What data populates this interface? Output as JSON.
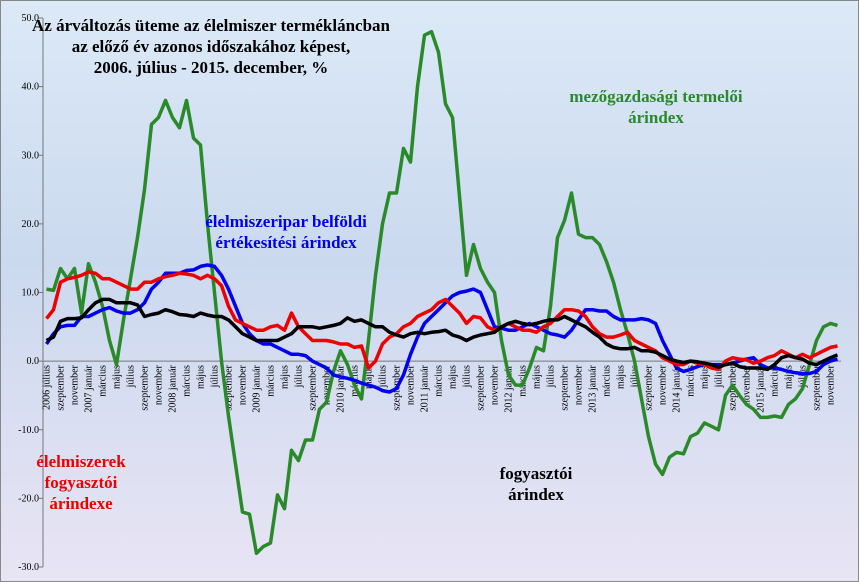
{
  "chart_data": {
    "type": "line",
    "title": [
      "Az árváltozás üteme az élelmiszer termékláncban",
      "az előző év azonos időszakához képest,",
      "2006. július - 2015. december, %"
    ],
    "categories": [
      "2006 július",
      null,
      "szeptember",
      null,
      "november",
      null,
      "2007 január",
      null,
      "március",
      null,
      "május",
      null,
      "július",
      null,
      "szeptember",
      null,
      "november",
      null,
      "2008 január",
      null,
      "március",
      null,
      "május",
      null,
      "július",
      null,
      "szeptember",
      null,
      "november",
      null,
      "2009 január",
      null,
      "március",
      null,
      "május",
      null,
      "július",
      null,
      "szeptember",
      null,
      "november",
      null,
      "2010 január",
      null,
      "március",
      null,
      "május",
      null,
      "július",
      null,
      "szeptember",
      null,
      "november",
      null,
      "2011 január",
      null,
      "március",
      null,
      "május",
      null,
      "július",
      null,
      "szeptember",
      null,
      "november",
      null,
      "2012 január",
      null,
      "március",
      null,
      "május",
      null,
      "július",
      null,
      "szeptember",
      null,
      "november",
      null,
      "2013 január",
      null,
      "március",
      null,
      "május",
      null,
      "július",
      null,
      "szeptember",
      null,
      "november",
      null,
      "2014 január",
      null,
      "március",
      null,
      "május",
      null,
      "július",
      null,
      "szeptember",
      null,
      "november",
      null,
      "2015 január",
      null,
      "március",
      null,
      "május",
      null,
      "július",
      null,
      "szeptember",
      null,
      "november",
      null
    ],
    "series": [
      {
        "name": "mezőgazdasági termelői árindex",
        "color": "#2a8a2a",
        "values": [
          10.5,
          10.3,
          13.5,
          12,
          13.5,
          7,
          14.2,
          11.5,
          8,
          3,
          -0.5,
          6,
          12,
          18,
          25,
          34.5,
          35.5,
          38,
          35.5,
          34,
          38,
          32.5,
          31.5,
          20,
          10,
          0,
          -8,
          -15,
          -22,
          -22.3,
          -28,
          -27,
          -26.5,
          -19.5,
          -21.5,
          -13,
          -14.5,
          -11.5,
          -11.5,
          -7,
          -6,
          -1.5,
          1.5,
          -0.5,
          -3.5,
          -5.5,
          3,
          12.5,
          20,
          24.5,
          24.5,
          31,
          29,
          40,
          47.5,
          48,
          45,
          37.5,
          35.5,
          24,
          12.5,
          17,
          13.5,
          11.5,
          10,
          3,
          -2,
          -3.5,
          -3.5,
          -1,
          2,
          1.5,
          8,
          18,
          20.5,
          24.5,
          18.5,
          18,
          18,
          17,
          14.5,
          11.5,
          7.5,
          4,
          0,
          -5.5,
          -11,
          -15,
          -16.5,
          -14,
          -13.3,
          -13.5,
          -11,
          -10.5,
          -9,
          -9.5,
          -10,
          -5,
          -3.5,
          -5,
          -6.3,
          -7,
          -8.2,
          -8.2,
          -8,
          -8.2,
          -6.3,
          -5.5,
          -4,
          -0.5,
          3,
          5,
          5.5,
          5.2
        ]
      },
      {
        "name": "élelmiszeripar belföldi értékesítési árindex",
        "color": "#0000ee",
        "values": [
          2.5,
          4,
          5,
          5.2,
          5.2,
          6.5,
          6.5,
          7,
          7.5,
          7.8,
          7.3,
          7,
          7,
          7.5,
          8.5,
          10.5,
          11.5,
          12.8,
          12.8,
          12.8,
          13.2,
          13.3,
          13.8,
          14,
          13.8,
          12.5,
          10.5,
          8,
          5.5,
          4,
          3,
          2.5,
          2.5,
          2,
          1.5,
          1,
          1,
          0.8,
          0,
          -0.5,
          -1,
          -2,
          -2.3,
          -2.5,
          -2.8,
          -3.2,
          -3.5,
          -3.8,
          -4.3,
          -4.5,
          -4,
          -2,
          1,
          3.5,
          5.5,
          6.5,
          7.5,
          8.5,
          9.5,
          10,
          10.2,
          10.5,
          10,
          7.5,
          5,
          4.8,
          4.5,
          4.5,
          5,
          5.5,
          5,
          4.5,
          4,
          3.8,
          3.5,
          4.5,
          6,
          7.5,
          7.5,
          7.3,
          7.3,
          6.5,
          6,
          6,
          6,
          6.2,
          6,
          5.5,
          3,
          1,
          -1,
          -1.5,
          -1.2,
          -0.8,
          -0.5,
          -0.5,
          -0.5,
          -0.5,
          -0.3,
          0,
          0.3,
          0.5,
          -0.5,
          -1,
          -1,
          -1.2,
          -1.5,
          -1.7,
          -1.8,
          -1.8,
          -1.5,
          -0.5,
          0,
          0.3
        ]
      },
      {
        "name": "élelmiszerek fogyasztói árindexe",
        "color": "#ee0000",
        "values": [
          6.2,
          7.5,
          11.5,
          12,
          12.2,
          12.5,
          13,
          12.8,
          12,
          12,
          11.5,
          11,
          10.5,
          10.5,
          11.5,
          11.5,
          12,
          12.3,
          12.5,
          12.8,
          12.7,
          12.5,
          12,
          12.5,
          12,
          11,
          8,
          6,
          5.5,
          5,
          4.5,
          4.5,
          5,
          5.2,
          4.5,
          7,
          5,
          4,
          3,
          3,
          3,
          2.8,
          2.5,
          2.5,
          2,
          2.2,
          -1,
          0,
          2.5,
          3.5,
          4,
          5,
          5.5,
          6.5,
          7,
          7.5,
          8.5,
          9,
          8,
          7,
          5.5,
          6.5,
          6.3,
          5,
          4.5,
          5,
          5.5,
          5,
          4.5,
          4.5,
          4.2,
          5,
          5.5,
          6.5,
          7.5,
          7.5,
          7.3,
          6.5,
          5,
          4,
          3.5,
          3.5,
          3.8,
          4.2,
          3,
          2.5,
          2,
          1.5,
          0.5,
          0,
          -0.5,
          -0.5,
          0,
          -0.3,
          -0.5,
          -1,
          -1.2,
          0,
          0.5,
          0.3,
          0.2,
          -0.3,
          0,
          0.5,
          0.8,
          1.5,
          1,
          0.5,
          1,
          0.5,
          1,
          1.5,
          2,
          2.2
        ]
      },
      {
        "name": "fogyasztói árindex",
        "color": "#000000",
        "values": [
          3,
          3.5,
          5.8,
          6.2,
          6.2,
          6.3,
          7.5,
          8.5,
          9,
          9,
          8.5,
          8.5,
          8.5,
          8.2,
          6.5,
          6.8,
          7,
          7.5,
          7.2,
          6.8,
          6.7,
          6.5,
          7,
          6.7,
          6.5,
          6.5,
          6,
          5,
          4,
          3.5,
          3,
          3,
          3,
          3,
          3.5,
          4,
          5,
          5,
          5,
          4.8,
          5,
          5.2,
          5.5,
          6.3,
          5.8,
          6,
          5.5,
          5,
          5,
          4.2,
          3.8,
          3.5,
          4,
          4.2,
          4,
          4.2,
          4.3,
          4.5,
          3.8,
          3.5,
          3,
          3.5,
          3.8,
          4,
          4.2,
          5,
          5.5,
          5.8,
          5.5,
          5.3,
          5.5,
          5.8,
          6,
          6,
          6.5,
          6,
          5.5,
          5,
          4.2,
          3.5,
          2.5,
          2,
          1.8,
          1.8,
          2,
          1.5,
          1.5,
          1.3,
          0.8,
          0.3,
          0,
          -0.2,
          0,
          -0.1,
          -0.3,
          -0.5,
          -0.9,
          -0.5,
          -0.3,
          -0.8,
          -1,
          -1,
          -1,
          -1.2,
          -0.5,
          0.5,
          0.8,
          0.5,
          0.3,
          -0.3,
          -0.5,
          0,
          0.5,
          0.9
        ]
      }
    ],
    "ylim": [
      -30,
      50
    ],
    "yticks": [
      {
        "value": -30,
        "label": "-30.0"
      },
      {
        "value": -20,
        "label": "-20.0"
      },
      {
        "value": -10,
        "label": "-10.0"
      },
      {
        "value": 0,
        "label": "0.0"
      },
      {
        "value": 10,
        "label": "10.0"
      },
      {
        "value": 20,
        "label": "20.0"
      },
      {
        "value": 30,
        "label": "30.0"
      },
      {
        "value": 40,
        "label": "40.0"
      },
      {
        "value": 50,
        "label": "50.0"
      }
    ],
    "grid": false
  }
}
